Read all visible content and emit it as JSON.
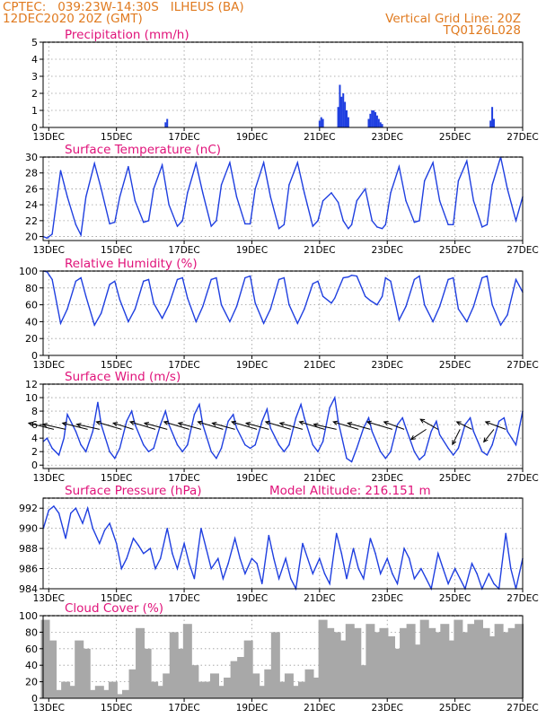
{
  "header": {
    "location": "CPTEC:   039:23W-14:30S   ILHEUS (BA)",
    "run": "12DEC2020 20Z (GMT)",
    "vgrid": "Vertical Grid Line: 20Z",
    "code": "TQ0126L028"
  },
  "colors": {
    "header": "#e07a1f",
    "title": "#e0137a",
    "line": "#1f3fe0",
    "cloud": "#a8a8a8",
    "frame": "#000000",
    "grid": "#9a9a9a"
  },
  "x_axis": {
    "start_day": 12.8333,
    "end_day": 27.0,
    "tick_days": [
      13,
      15,
      17,
      19,
      21,
      23,
      25,
      27
    ],
    "tick_labels": [
      "13DEC",
      "15DEC",
      "17DEC",
      "19DEC",
      "21DEC",
      "23DEC",
      "25DEC",
      "27DEC"
    ]
  },
  "chart_data": [
    {
      "type": "bar",
      "title": "Precipitation (mm/h)",
      "ylim": [
        0,
        5
      ],
      "yticks": [
        0,
        1,
        2,
        3,
        4,
        5
      ],
      "x": [
        16.45,
        16.5,
        21.0,
        21.05,
        21.1,
        21.55,
        21.6,
        21.65,
        21.7,
        21.75,
        21.8,
        21.85,
        22.45,
        22.5,
        22.55,
        22.6,
        22.65,
        22.7,
        22.75,
        22.8,
        22.85,
        26.05,
        26.1,
        26.15
      ],
      "values": [
        0.3,
        0.5,
        0.4,
        0.6,
        0.5,
        1.2,
        2.5,
        1.8,
        2.0,
        1.5,
        1.0,
        0.6,
        0.5,
        0.8,
        1.0,
        1.0,
        0.9,
        0.7,
        0.5,
        0.3,
        0.2,
        0.4,
        1.2,
        0.5
      ]
    },
    {
      "type": "line",
      "title": "Surface Temperature (nC)",
      "ylim": [
        19.5,
        30
      ],
      "yticks": [
        20,
        22,
        24,
        26,
        28,
        30
      ],
      "x": [
        12.84,
        12.95,
        13.1,
        13.35,
        13.55,
        13.8,
        13.95,
        14.1,
        14.35,
        14.55,
        14.8,
        14.95,
        15.1,
        15.35,
        15.55,
        15.8,
        15.95,
        16.1,
        16.35,
        16.55,
        16.8,
        16.95,
        17.1,
        17.35,
        17.55,
        17.8,
        17.95,
        18.1,
        18.35,
        18.55,
        18.8,
        18.95,
        19.1,
        19.35,
        19.55,
        19.8,
        19.95,
        20.1,
        20.35,
        20.55,
        20.8,
        20.95,
        21.1,
        21.35,
        21.55,
        21.7,
        21.85,
        21.95,
        22.1,
        22.35,
        22.55,
        22.7,
        22.85,
        22.95,
        23.1,
        23.35,
        23.55,
        23.8,
        23.95,
        24.1,
        24.35,
        24.55,
        24.8,
        24.95,
        25.1,
        25.35,
        25.55,
        25.8,
        25.95,
        26.1,
        26.35,
        26.55,
        26.8,
        27.0
      ],
      "values": [
        20.0,
        19.8,
        20.3,
        28.3,
        25.0,
        21.5,
        20.2,
        25.0,
        29.2,
        26.0,
        21.6,
        21.8,
        25.0,
        28.8,
        24.5,
        21.8,
        22.0,
        26.0,
        29.0,
        24.0,
        21.3,
        22.0,
        25.5,
        29.2,
        25.5,
        21.3,
        22.0,
        26.5,
        29.3,
        25.0,
        21.6,
        21.6,
        26.0,
        29.3,
        25.0,
        21.0,
        21.5,
        26.5,
        29.3,
        25.5,
        21.3,
        22.0,
        24.5,
        25.5,
        24.3,
        22.0,
        21.0,
        21.5,
        24.5,
        26.0,
        22.0,
        21.2,
        21.0,
        21.5,
        25.5,
        28.8,
        24.5,
        21.8,
        22.0,
        27.0,
        29.3,
        24.5,
        21.5,
        21.5,
        27.0,
        29.5,
        24.5,
        21.2,
        21.5,
        26.5,
        30.0,
        26.0,
        22.0,
        25.0
      ]
    },
    {
      "type": "line",
      "title": "Relative Humidity (%)",
      "ylim": [
        0,
        100
      ],
      "yticks": [
        0,
        20,
        40,
        60,
        80,
        100
      ],
      "x": [
        12.84,
        12.95,
        13.1,
        13.35,
        13.55,
        13.8,
        13.95,
        14.1,
        14.35,
        14.55,
        14.8,
        14.95,
        15.1,
        15.35,
        15.55,
        15.8,
        15.95,
        16.1,
        16.35,
        16.55,
        16.8,
        16.95,
        17.1,
        17.35,
        17.55,
        17.8,
        17.95,
        18.1,
        18.35,
        18.55,
        18.8,
        18.95,
        19.1,
        19.35,
        19.55,
        19.8,
        19.95,
        20.1,
        20.35,
        20.55,
        20.8,
        20.95,
        21.1,
        21.35,
        21.45,
        21.55,
        21.7,
        21.85,
        21.95,
        22.1,
        22.35,
        22.5,
        22.7,
        22.85,
        22.95,
        23.1,
        23.35,
        23.55,
        23.8,
        23.95,
        24.1,
        24.35,
        24.55,
        24.8,
        24.95,
        25.1,
        25.35,
        25.55,
        25.8,
        25.95,
        26.1,
        26.35,
        26.55,
        26.8,
        27.0
      ],
      "values": [
        100,
        99,
        90,
        38,
        55,
        88,
        92,
        70,
        36,
        50,
        84,
        88,
        66,
        40,
        55,
        88,
        90,
        62,
        44,
        60,
        90,
        92,
        68,
        40,
        58,
        90,
        92,
        60,
        40,
        58,
        92,
        94,
        62,
        38,
        55,
        90,
        92,
        60,
        38,
        55,
        85,
        88,
        70,
        62,
        68,
        78,
        92,
        93,
        95,
        94,
        70,
        65,
        60,
        70,
        92,
        88,
        42,
        58,
        90,
        94,
        60,
        40,
        58,
        90,
        92,
        55,
        40,
        58,
        92,
        94,
        60,
        36,
        48,
        90,
        75
      ]
    },
    {
      "type": "line",
      "title": "Surface Wind (m/s)",
      "ylim": [
        -0.5,
        12
      ],
      "yticks": [
        0,
        2,
        4,
        6,
        8,
        10,
        12
      ],
      "x": [
        12.84,
        12.95,
        13.1,
        13.3,
        13.45,
        13.55,
        13.8,
        13.95,
        14.1,
        14.3,
        14.45,
        14.55,
        14.8,
        14.95,
        15.1,
        15.3,
        15.45,
        15.55,
        15.8,
        15.95,
        16.1,
        16.3,
        16.45,
        16.55,
        16.8,
        16.95,
        17.1,
        17.3,
        17.45,
        17.55,
        17.8,
        17.95,
        18.1,
        18.3,
        18.45,
        18.55,
        18.8,
        18.95,
        19.1,
        19.3,
        19.45,
        19.55,
        19.8,
        19.95,
        20.1,
        20.3,
        20.45,
        20.55,
        20.8,
        20.95,
        21.1,
        21.3,
        21.45,
        21.55,
        21.8,
        21.95,
        22.1,
        22.3,
        22.45,
        22.55,
        22.8,
        22.95,
        23.1,
        23.3,
        23.45,
        23.55,
        23.8,
        23.95,
        24.1,
        24.3,
        24.45,
        24.55,
        24.8,
        24.95,
        25.1,
        25.3,
        25.45,
        25.55,
        25.8,
        25.95,
        26.1,
        26.3,
        26.45,
        26.55,
        26.8,
        27.0
      ],
      "values": [
        3.5,
        4.0,
        2.5,
        1.5,
        4.0,
        7.5,
        5.0,
        3.0,
        2.0,
        5.0,
        9.3,
        6.0,
        2.0,
        1.0,
        2.5,
        6.5,
        8.0,
        6.0,
        3.0,
        2.0,
        2.5,
        6.0,
        8.0,
        6.0,
        3.0,
        2.0,
        3.0,
        7.5,
        9.0,
        6.0,
        2.0,
        1.0,
        2.5,
        6.5,
        7.5,
        5.5,
        3.0,
        2.5,
        3.0,
        6.5,
        8.3,
        5.5,
        3.0,
        2.0,
        3.0,
        7.0,
        9.0,
        7.0,
        3.0,
        2.0,
        3.5,
        8.5,
        10.0,
        6.5,
        1.0,
        0.5,
        2.5,
        5.5,
        7.0,
        5.0,
        2.0,
        1.0,
        2.0,
        6.0,
        7.0,
        5.5,
        2.0,
        0.8,
        1.5,
        5.0,
        6.5,
        4.5,
        2.5,
        1.5,
        2.5,
        6.0,
        7.0,
        5.0,
        2.0,
        1.5,
        3.0,
        6.5,
        7.0,
        5.0,
        3.0,
        8.0
      ],
      "arrow_x": [
        13.15,
        13.5,
        14.15,
        14.5,
        15.15,
        15.5,
        16.15,
        16.5,
        17.15,
        17.5,
        18.15,
        18.5,
        19.15,
        19.5,
        20.15,
        20.5,
        21.15,
        21.5,
        22.15,
        22.5,
        23.15,
        23.5,
        24.15,
        24.5,
        25.15,
        25.5,
        26.15,
        26.5
      ],
      "arrow_u": [
        -1.0,
        -0.9,
        -1.0,
        -0.9,
        -1.0,
        -0.8,
        -1.0,
        -0.9,
        -1.0,
        -0.9,
        -1.0,
        -0.9,
        -1.0,
        -0.9,
        -1.0,
        -0.9,
        -1.0,
        -0.9,
        -1.0,
        -0.9,
        -1.0,
        -0.8,
        -0.6,
        -0.7,
        -0.3,
        -0.6,
        -0.4,
        -0.8
      ],
      "arrow_v": [
        0.25,
        0.2,
        0.25,
        0.2,
        0.3,
        0.25,
        0.3,
        0.25,
        0.3,
        0.25,
        0.3,
        0.25,
        0.3,
        0.25,
        0.3,
        0.25,
        0.3,
        0.2,
        0.3,
        0.25,
        0.3,
        0.3,
        -0.4,
        0.4,
        -0.6,
        0.3,
        -0.5,
        0.3
      ]
    },
    {
      "type": "line",
      "title": "Surface Pressure (hPa)",
      "annotation": "Model Altitude: 216.151  m",
      "ylim": [
        984,
        993
      ],
      "yticks": [
        984,
        986,
        988,
        990,
        992
      ],
      "x": [
        12.84,
        13.0,
        13.15,
        13.3,
        13.5,
        13.65,
        13.8,
        14.0,
        14.15,
        14.3,
        14.5,
        14.65,
        14.8,
        15.0,
        15.15,
        15.3,
        15.5,
        15.65,
        15.8,
        16.0,
        16.15,
        16.3,
        16.5,
        16.65,
        16.8,
        17.0,
        17.15,
        17.3,
        17.5,
        17.65,
        17.8,
        18.0,
        18.15,
        18.3,
        18.5,
        18.65,
        18.8,
        19.0,
        19.15,
        19.3,
        19.5,
        19.65,
        19.8,
        20.0,
        20.15,
        20.3,
        20.5,
        20.65,
        20.8,
        21.0,
        21.15,
        21.3,
        21.5,
        21.65,
        21.8,
        22.0,
        22.15,
        22.3,
        22.5,
        22.65,
        22.8,
        23.0,
        23.15,
        23.3,
        23.5,
        23.65,
        23.8,
        24.0,
        24.15,
        24.3,
        24.5,
        24.65,
        24.8,
        25.0,
        25.15,
        25.3,
        25.5,
        25.65,
        25.8,
        26.0,
        26.15,
        26.3,
        26.5,
        26.65,
        26.8,
        27.0
      ],
      "values": [
        990.0,
        991.8,
        992.2,
        991.5,
        989.0,
        991.5,
        992.0,
        990.5,
        992.0,
        990.0,
        988.5,
        989.8,
        990.5,
        988.5,
        986.0,
        987.0,
        989.0,
        988.3,
        987.5,
        988.0,
        986.0,
        987.0,
        990.0,
        987.5,
        986.0,
        988.5,
        986.5,
        985.0,
        990.0,
        988.0,
        986.0,
        987.0,
        985.0,
        986.5,
        989.0,
        987.0,
        985.5,
        987.0,
        986.5,
        984.5,
        989.3,
        987.0,
        985.0,
        987.0,
        985.0,
        984.0,
        988.5,
        987.0,
        985.5,
        987.0,
        985.5,
        984.5,
        989.5,
        987.5,
        985.0,
        988.0,
        986.0,
        985.0,
        989.0,
        987.5,
        985.5,
        987.0,
        985.5,
        984.5,
        988.0,
        987.0,
        985.0,
        986.0,
        985.0,
        984.0,
        987.5,
        986.0,
        984.5,
        986.0,
        985.0,
        984.0,
        986.5,
        985.5,
        984.0,
        985.5,
        984.5,
        984.0,
        989.5,
        986.0,
        984.0,
        987.0
      ]
    },
    {
      "type": "bar",
      "title": "Cloud Cover (%)",
      "ylim": [
        0,
        100
      ],
      "yticks": [
        0,
        20,
        40,
        60,
        80,
        100
      ],
      "x": [
        12.9,
        13.1,
        13.3,
        13.5,
        13.7,
        13.9,
        14.1,
        14.3,
        14.5,
        14.7,
        14.9,
        15.1,
        15.3,
        15.5,
        15.7,
        15.9,
        16.1,
        16.3,
        16.5,
        16.7,
        16.9,
        17.1,
        17.3,
        17.5,
        17.7,
        17.9,
        18.1,
        18.3,
        18.5,
        18.7,
        18.9,
        19.1,
        19.3,
        19.5,
        19.7,
        19.9,
        20.1,
        20.3,
        20.5,
        20.7,
        20.9,
        21.1,
        21.3,
        21.5,
        21.7,
        21.9,
        22.1,
        22.3,
        22.5,
        22.7,
        22.9,
        23.1,
        23.3,
        23.5,
        23.7,
        23.9,
        24.1,
        24.3,
        24.5,
        24.7,
        24.9,
        25.1,
        25.3,
        25.5,
        25.7,
        25.9,
        26.1,
        26.3,
        26.5,
        26.7,
        26.9
      ],
      "values": [
        95,
        70,
        10,
        20,
        15,
        70,
        60,
        10,
        15,
        10,
        20,
        5,
        10,
        35,
        85,
        60,
        20,
        15,
        30,
        80,
        60,
        90,
        40,
        20,
        20,
        30,
        15,
        25,
        45,
        50,
        70,
        30,
        15,
        35,
        80,
        20,
        30,
        15,
        20,
        35,
        25,
        95,
        85,
        80,
        70,
        90,
        85,
        40,
        90,
        80,
        85,
        75,
        60,
        85,
        90,
        65,
        95,
        85,
        80,
        90,
        70,
        95,
        80,
        90,
        95,
        85,
        75,
        90,
        80,
        85,
        90
      ]
    }
  ]
}
